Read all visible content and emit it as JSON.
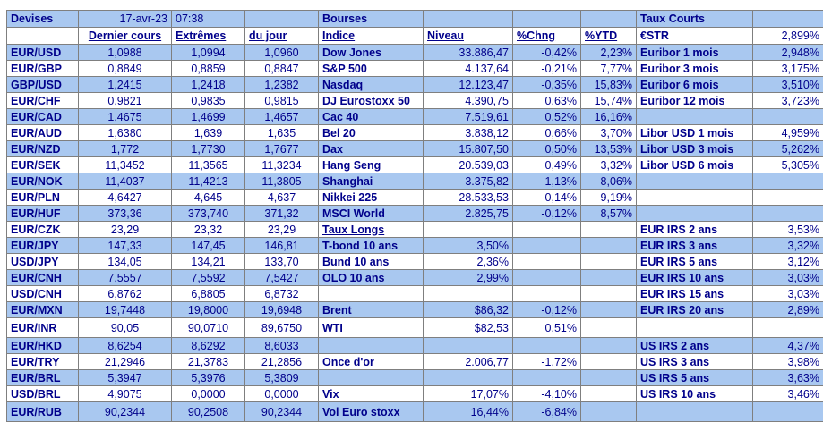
{
  "header": {
    "devises": "Devises",
    "date": "17-avr-23",
    "time": "07:38",
    "bourses": "Bourses",
    "taux_courts": "Taux Courts"
  },
  "subheader": {
    "dernier_cours": "Dernier cours",
    "extremes": "Extrêmes",
    "du_jour": "du jour",
    "indice": "Indice",
    "niveau": "Niveau",
    "chng": "%Chng",
    "ytd": "%YTD",
    "estr_label": "€STR",
    "estr_value": "2,899%"
  },
  "currencies": [
    {
      "pair": "EUR/USD",
      "last": "1,0988",
      "high": "1,0994",
      "low": "1,0960"
    },
    {
      "pair": "EUR/GBP",
      "last": "0,8849",
      "high": "0,8859",
      "low": "0,8847"
    },
    {
      "pair": "GBP/USD",
      "last": "1,2415",
      "high": "1,2418",
      "low": "1,2382"
    },
    {
      "pair": "EUR/CHF",
      "last": "0,9821",
      "high": "0,9835",
      "low": "0,9815"
    },
    {
      "pair": "EUR/CAD",
      "last": "1,4675",
      "high": "1,4699",
      "low": "1,4657"
    },
    {
      "pair": "EUR/AUD",
      "last": "1,6380",
      "high": "1,639",
      "low": "1,635"
    },
    {
      "pair": "EUR/NZD",
      "last": "1,772",
      "high": "1,7730",
      "low": "1,7677"
    },
    {
      "pair": "EUR/SEK",
      "last": "11,3452",
      "high": "11,3565",
      "low": "11,3234"
    },
    {
      "pair": "EUR/NOK",
      "last": "11,4037",
      "high": "11,4213",
      "low": "11,3805"
    },
    {
      "pair": "EUR/PLN",
      "last": "4,6427",
      "high": "4,645",
      "low": "4,637"
    },
    {
      "pair": "EUR/HUF",
      "last": "373,36",
      "high": "373,740",
      "low": "371,32"
    },
    {
      "pair": "EUR/CZK",
      "last": "23,29",
      "high": "23,32",
      "low": "23,29"
    },
    {
      "pair": "EUR/JPY",
      "last": "147,33",
      "high": "147,45",
      "low": "146,81"
    },
    {
      "pair": "USD/JPY",
      "last": "134,05",
      "high": "134,21",
      "low": "133,70"
    },
    {
      "pair": "EUR/CNH",
      "last": "7,5557",
      "high": "7,5592",
      "low": "7,5427"
    },
    {
      "pair": "USD/CNH",
      "last": "6,8762",
      "high": "6,8805",
      "low": "6,8732"
    },
    {
      "pair": "EUR/MXN",
      "last": "19,7448",
      "high": "19,8000",
      "low": "19,6948"
    },
    {
      "pair": "EUR/INR",
      "last": "90,05",
      "high": "90,0710",
      "low": "89,6750"
    },
    {
      "pair": "EUR/HKD",
      "last": "8,6254",
      "high": "8,6292",
      "low": "8,6033"
    },
    {
      "pair": "EUR/TRY",
      "last": "21,2946",
      "high": "21,3783",
      "low": "21,2856"
    },
    {
      "pair": "EUR/BRL",
      "last": "5,3947",
      "high": "5,3976",
      "low": "5,3809"
    },
    {
      "pair": "USD/BRL",
      "last": "4,9075",
      "high": "0,0000",
      "low": "0,0000"
    },
    {
      "pair": "EUR/RUB",
      "last": "90,2344",
      "high": "90,2508",
      "low": "90,2344"
    }
  ],
  "middle": [
    {
      "name": "Dow Jones",
      "level": "33.886,47",
      "chng": "-0,42%",
      "ytd": "2,23%"
    },
    {
      "name": "S&P 500",
      "level": "4.137,64",
      "chng": "-0,21%",
      "ytd": "7,77%"
    },
    {
      "name": "Nasdaq",
      "level": "12.123,47",
      "chng": "-0,35%",
      "ytd": "15,83%"
    },
    {
      "name": "DJ Eurostoxx 50",
      "level": "4.390,75",
      "chng": "0,63%",
      "ytd": "15,74%"
    },
    {
      "name": "Cac 40",
      "level": "7.519,61",
      "chng": "0,52%",
      "ytd": "16,16%"
    },
    {
      "name": "Bel 20",
      "level": "3.838,12",
      "chng": "0,66%",
      "ytd": "3,70%"
    },
    {
      "name": "Dax",
      "level": "15.807,50",
      "chng": "0,50%",
      "ytd": "13,53%"
    },
    {
      "name": "Hang Seng",
      "level": "20.539,03",
      "chng": "0,49%",
      "ytd": "3,32%"
    },
    {
      "name": "Shanghai",
      "level": "3.375,82",
      "chng": "1,13%",
      "ytd": "8,06%"
    },
    {
      "name": "Nikkei 225",
      "level": "28.533,53",
      "chng": "0,14%",
      "ytd": "9,19%"
    },
    {
      "name": "MSCI World",
      "level": "2.825,75",
      "chng": "-0,12%",
      "ytd": "8,57%"
    },
    {
      "name": "Taux Longs",
      "level": "",
      "chng": "",
      "ytd": ""
    },
    {
      "name": "T-bond 10 ans",
      "level": "3,50%",
      "chng": "",
      "ytd": ""
    },
    {
      "name": "Bund 10 ans",
      "level": "2,36%",
      "chng": "",
      "ytd": ""
    },
    {
      "name": "OLO 10 ans",
      "level": "2,99%",
      "chng": "",
      "ytd": ""
    },
    {
      "name": "",
      "level": "",
      "chng": "",
      "ytd": ""
    },
    {
      "name": "Brent",
      "level": "$86,32",
      "chng": "-0,12%",
      "ytd": ""
    },
    {
      "name": "WTI",
      "level": "$82,53",
      "chng": "0,51%",
      "ytd": ""
    },
    {
      "name": "",
      "level": "",
      "chng": "",
      "ytd": ""
    },
    {
      "name": "Once d'or",
      "level": "2.006,77",
      "chng": "-1,72%",
      "ytd": ""
    },
    {
      "name": "",
      "level": "",
      "chng": "",
      "ytd": ""
    },
    {
      "name": "Vix",
      "level": "17,07%",
      "chng": "-4,10%",
      "ytd": ""
    },
    {
      "name": "Vol Euro stoxx",
      "level": "16,44%",
      "chng": "-6,84%",
      "ytd": ""
    }
  ],
  "rates": [
    {
      "label": "Euribor 1 mois",
      "value": "2,948%"
    },
    {
      "label": "Euribor 3 mois",
      "value": "3,175%"
    },
    {
      "label": "Euribor 6 mois",
      "value": "3,510%"
    },
    {
      "label": "Euribor 12 mois",
      "value": "3,723%"
    },
    {
      "label": "",
      "value": ""
    },
    {
      "label": "Libor USD 1 mois",
      "value": "4,959%"
    },
    {
      "label": "Libor USD 3 mois",
      "value": "5,262%"
    },
    {
      "label": "Libor USD 6 mois",
      "value": "5,305%"
    },
    {
      "label": "",
      "value": ""
    },
    {
      "label": "",
      "value": ""
    },
    {
      "label": "",
      "value": ""
    },
    {
      "label": "EUR IRS 2 ans",
      "value": "3,53%"
    },
    {
      "label": "EUR IRS 3 ans",
      "value": "3,32%"
    },
    {
      "label": "EUR IRS 5 ans",
      "value": "3,12%"
    },
    {
      "label": "EUR IRS 10 ans",
      "value": "3,03%"
    },
    {
      "label": "EUR IRS 15 ans",
      "value": "3,03%"
    },
    {
      "label": "EUR IRS 20 ans",
      "value": "2,89%"
    },
    {
      "label": "",
      "value": ""
    },
    {
      "label": "US IRS 2 ans",
      "value": "4,37%"
    },
    {
      "label": "US IRS 3 ans",
      "value": "3,98%"
    },
    {
      "label": "US IRS 5 ans",
      "value": "3,63%"
    },
    {
      "label": "US IRS 10 ans",
      "value": "3,46%"
    },
    {
      "label": "",
      "value": ""
    }
  ],
  "colors": {
    "band": "#A9C8F0",
    "text": "#00008B",
    "grid": "#7f7f7f"
  }
}
